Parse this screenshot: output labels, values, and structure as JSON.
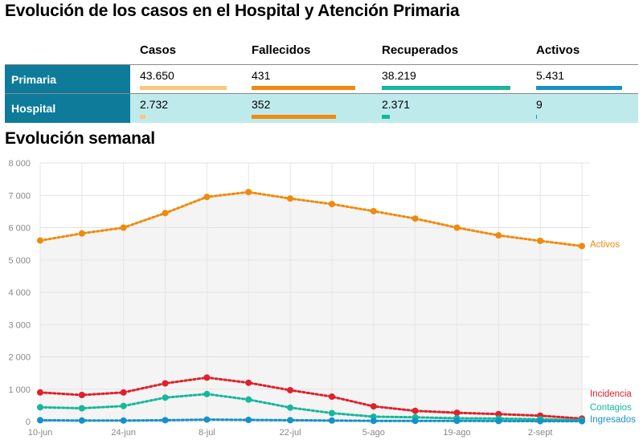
{
  "title": "Evolución de los casos en el Hospital y Atención Primaria",
  "summary_table": {
    "headers": [
      "",
      "Casos",
      "Fallecidos",
      "Recuperados",
      "Activos"
    ],
    "rows": [
      {
        "label": "Primaria",
        "casos": "43.650",
        "fallecidos": "431",
        "recuperados": "38.219",
        "activos": "5.431",
        "bar_fraction": {
          "casos": 1.0,
          "fallecidos": 1.0,
          "recuperados": 1.0,
          "activos": 1.0
        }
      },
      {
        "label": "Hospital",
        "casos": "2.732",
        "fallecidos": "352",
        "recuperados": "2.371",
        "activos": "9",
        "bar_fraction": {
          "casos": 0.0626,
          "fallecidos": 0.8167,
          "recuperados": 0.062,
          "activos": 0.0017
        }
      }
    ],
    "colors": {
      "casos": "#f7c97a",
      "fallecidos": "#f08a0c",
      "recuperados": "#14b89a",
      "activos": "#1591c9",
      "row_label_bg": "#0e7b9a",
      "hospital_row_bg": "#bfeaec"
    }
  },
  "subtitle": "Evolución semanal",
  "chart_data": {
    "type": "line",
    "title": "",
    "xlabel": "",
    "ylabel": "",
    "ylim": [
      0,
      8000
    ],
    "yticks": [
      0,
      1000,
      2000,
      3000,
      4000,
      5000,
      6000,
      7000,
      8000
    ],
    "ytick_labels": [
      "0",
      "1 000",
      "2 000",
      "3 000",
      "4 000",
      "5 000",
      "6 000",
      "7 000",
      "8 000"
    ],
    "x": [
      "2020-06-10",
      "2020-06-17",
      "2020-06-24",
      "2020-07-01",
      "2020-07-08",
      "2020-07-15",
      "2020-07-22",
      "2020-07-29",
      "2020-08-05",
      "2020-08-12",
      "2020-08-19",
      "2020-08-26",
      "2020-09-02",
      "2020-09-09"
    ],
    "x_tick_labels": [
      "10-jun",
      "",
      "24-jun",
      "",
      "8-jul",
      "",
      "22-jul",
      "",
      "5-ago",
      "",
      "19-ago",
      "",
      "2-sept",
      ""
    ],
    "grid": "vertical and horizontal",
    "legend": "direct labels at right end of lines",
    "series": [
      {
        "name": "Activos",
        "color": "#f08a0c",
        "fill": true,
        "values": [
          5600,
          5820,
          6000,
          6450,
          6950,
          7100,
          6900,
          6730,
          6510,
          6280,
          6000,
          5760,
          5590,
          5430
        ]
      },
      {
        "name": "Incidencia",
        "color": "#e0202a",
        "values": [
          900,
          820,
          900,
          1180,
          1360,
          1200,
          970,
          770,
          470,
          330,
          270,
          230,
          180,
          90
        ]
      },
      {
        "name": "Contagios",
        "color": "#14b89a",
        "values": [
          440,
          410,
          480,
          740,
          850,
          680,
          430,
          260,
          150,
          130,
          100,
          90,
          70,
          40
        ]
      },
      {
        "name": "Ingresados",
        "color": "#1591c9",
        "values": [
          40,
          30,
          30,
          40,
          60,
          50,
          40,
          30,
          20,
          20,
          20,
          15,
          10,
          10
        ]
      }
    ]
  }
}
